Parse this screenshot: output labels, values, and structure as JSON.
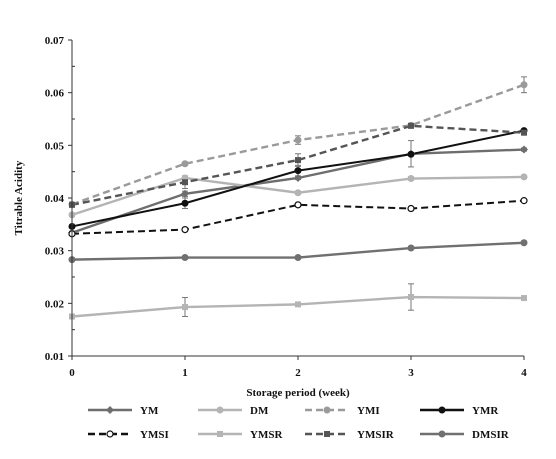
{
  "chart_data": {
    "type": "line",
    "xlabel": "Storage period  (week)",
    "ylabel": "Titrable Acidity",
    "x": [
      0,
      1,
      2,
      3,
      4
    ],
    "xlim": [
      0,
      4
    ],
    "ylim": [
      0.01,
      0.07
    ],
    "yticks": [
      "0.01",
      "0.02",
      "0.03",
      "0.04",
      "0.05",
      "0.06",
      "0.07"
    ],
    "xticks": [
      "0",
      "1",
      "2",
      "3",
      "4"
    ],
    "grid": false,
    "legend_position": "bottom",
    "series": [
      {
        "name": "YM",
        "values": [
          0.0334,
          0.0408,
          0.0438,
          0.0484,
          0.0492
        ],
        "color": "#6e6e6e",
        "dash": "solid",
        "marker": "filled-diamond",
        "errors": [
          0.0003,
          0.0005,
          0.0003,
          0.0025,
          0.0003
        ]
      },
      {
        "name": "DM",
        "values": [
          0.0368,
          0.0438,
          0.041,
          0.0437,
          0.044
        ],
        "color": "#b4b4b4",
        "dash": "solid",
        "marker": "filled-circle",
        "errors": [
          0.0003,
          0.0003,
          0.0003,
          0.0003,
          0.0003
        ]
      },
      {
        "name": "YMI",
        "values": [
          0.0388,
          0.0465,
          0.051,
          0.0538,
          0.0615
        ],
        "color": "#9a9a9a",
        "dash": "dashed",
        "marker": "filled-circle",
        "errors": [
          0.0003,
          0.0003,
          0.0008,
          0.0003,
          0.0015
        ]
      },
      {
        "name": "YMR",
        "values": [
          0.0346,
          0.039,
          0.0452,
          0.0483,
          0.0528
        ],
        "color": "#111111",
        "dash": "solid",
        "marker": "filled-circle",
        "errors": [
          0.0003,
          0.001,
          0.001,
          0.0003,
          0.0003
        ]
      },
      {
        "name": "YMSI",
        "values": [
          0.0332,
          0.034,
          0.0387,
          0.038,
          0.0395
        ],
        "color": "#111111",
        "dash": "dashed",
        "marker": "open-circle",
        "errors": [
          0.0003,
          0.0003,
          0.0003,
          0.0003,
          0.0003
        ]
      },
      {
        "name": "YMSR",
        "values": [
          0.0175,
          0.0193,
          0.0198,
          0.0212,
          0.021
        ],
        "color": "#b4b4b4",
        "dash": "solid",
        "marker": "filled-square",
        "errors": [
          0.0003,
          0.0018,
          0.0003,
          0.0025,
          0.0003
        ]
      },
      {
        "name": "YMSIR",
        "values": [
          0.0387,
          0.043,
          0.0472,
          0.0537,
          0.0524
        ],
        "color": "#555555",
        "dash": "dashed",
        "marker": "filled-square",
        "errors": [
          0.0003,
          0.0012,
          0.0012,
          0.0003,
          0.0003
        ]
      },
      {
        "name": "DMSIR",
        "values": [
          0.0283,
          0.0287,
          0.0287,
          0.0305,
          0.0315
        ],
        "color": "#707070",
        "dash": "solid",
        "marker": "filled-circle",
        "errors": [
          0.0003,
          0.0003,
          0.0003,
          0.0003,
          0.0003
        ]
      }
    ]
  }
}
